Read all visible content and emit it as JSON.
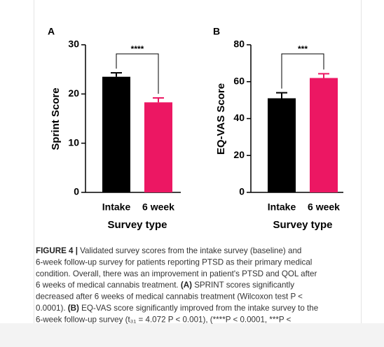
{
  "chart_data": [
    {
      "type": "bar",
      "panel": "A",
      "ylabel": "Sprint Score",
      "xlabel": "Survey type",
      "categories": [
        "Intake",
        "6 week"
      ],
      "values": [
        23.5,
        18.3
      ],
      "errors": [
        0.8,
        0.9
      ],
      "colors": [
        "#000000",
        "#ec1763"
      ],
      "ylim": [
        0,
        30
      ],
      "yticks": [
        0,
        10,
        20,
        30
      ],
      "significance": "****"
    },
    {
      "type": "bar",
      "panel": "B",
      "ylabel": "EQ-VAS Score",
      "xlabel": "Survey type",
      "categories": [
        "Intake",
        "6 week"
      ],
      "values": [
        51,
        62
      ],
      "errors": [
        3,
        2.3
      ],
      "colors": [
        "#000000",
        "#ec1763"
      ],
      "ylim": [
        0,
        80
      ],
      "yticks": [
        0,
        20,
        40,
        60,
        80
      ],
      "significance": "***"
    }
  ],
  "caption": {
    "lines": [
      [
        {
          "text": "FIGURE 4 |",
          "bold": true
        },
        {
          "text": " Validated survey scores from the intake survey (baseline) and"
        }
      ],
      [
        {
          "text": "6-week follow-up survey for patients reporting PTSD as their primary medical"
        }
      ],
      [
        {
          "text": "condition. Overall, there was an improvement in patient's PTSD and QOL after"
        }
      ],
      [
        {
          "text": "6 weeks of medical cannabis treatment. "
        },
        {
          "text": "(A)",
          "bold": true
        },
        {
          "text": " SPRINT scores significantly"
        }
      ],
      [
        {
          "text": "decreased after 6 weeks of medical cannabis treatment (Wilcoxon test P <"
        }
      ],
      [
        {
          "text": "0.0001). "
        },
        {
          "text": "(B)",
          "bold": true
        },
        {
          "text": " EQ-VAS score significantly improved from the intake survey to the"
        }
      ],
      [
        {
          "text": "6-week follow-up survey (t₃₁ = 4.072 P < 0.001), (****P < 0.0001, ***P <"
        }
      ]
    ]
  }
}
